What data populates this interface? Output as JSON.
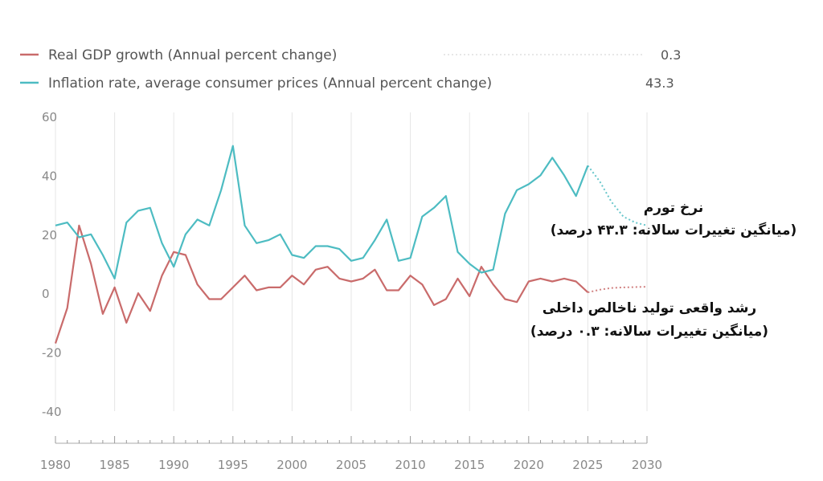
{
  "chart_data": {
    "type": "line",
    "title": "",
    "xlabel": "",
    "ylabel": "",
    "xlim": [
      1980,
      2030
    ],
    "ylim": [
      -40,
      60
    ],
    "x_ticks": [
      1980,
      1985,
      1990,
      1995,
      2000,
      2005,
      2010,
      2015,
      2020,
      2025,
      2030
    ],
    "y_ticks": [
      -40,
      -20,
      0,
      20,
      40,
      60
    ],
    "grid": "vertical",
    "legend_position": "top-left",
    "series": [
      {
        "name": "Real GDP growth (Annual percent change)",
        "legend_value": "0.3",
        "color": "#c96b6b",
        "x": [
          1980,
          1981,
          1982,
          1983,
          1984,
          1985,
          1986,
          1987,
          1988,
          1989,
          1990,
          1991,
          1992,
          1993,
          1994,
          1995,
          1996,
          1997,
          1998,
          1999,
          2000,
          2001,
          2002,
          2003,
          2004,
          2005,
          2006,
          2007,
          2008,
          2009,
          2010,
          2011,
          2012,
          2013,
          2014,
          2015,
          2016,
          2017,
          2018,
          2019,
          2020,
          2021,
          2022,
          2023,
          2024,
          2025
        ],
        "values": [
          -17,
          -5,
          23,
          10,
          -7,
          2,
          -10,
          0,
          -6,
          6,
          14,
          13,
          3,
          -2,
          -2,
          2,
          6,
          1,
          2,
          2,
          6,
          3,
          8,
          9,
          5,
          4,
          5,
          8,
          1,
          1,
          6,
          3,
          -4,
          -2,
          5,
          -1,
          9,
          3,
          -2,
          -3,
          4,
          5,
          4,
          5,
          4,
          0.3
        ],
        "projection": {
          "x": [
            2025,
            2026,
            2027,
            2028,
            2029,
            2030
          ],
          "values": [
            0.3,
            1.2,
            1.8,
            2.0,
            2.1,
            2.2
          ]
        }
      },
      {
        "name": "Inflation rate, average consumer prices (Annual percent change)",
        "legend_value": "43.3",
        "color": "#4dbcc2",
        "x": [
          1980,
          1981,
          1982,
          1983,
          1984,
          1985,
          1986,
          1987,
          1988,
          1989,
          1990,
          1991,
          1992,
          1993,
          1994,
          1995,
          1996,
          1997,
          1998,
          1999,
          2000,
          2001,
          2002,
          2003,
          2004,
          2005,
          2006,
          2007,
          2008,
          2009,
          2010,
          2011,
          2012,
          2013,
          2014,
          2015,
          2016,
          2017,
          2018,
          2019,
          2020,
          2021,
          2022,
          2023,
          2024,
          2025
        ],
        "values": [
          23,
          24,
          19,
          20,
          13,
          5,
          24,
          28,
          29,
          17,
          9,
          20,
          25,
          23,
          35,
          50,
          23,
          17,
          18,
          20,
          13,
          12,
          16,
          16,
          15,
          11,
          12,
          18,
          25,
          11,
          12,
          26,
          29,
          33,
          14,
          10,
          7,
          8,
          27,
          35,
          37,
          40,
          46,
          40,
          33,
          43.3
        ],
        "projection": {
          "x": [
            2025,
            2026,
            2027,
            2028,
            2029,
            2030
          ],
          "values": [
            43.3,
            38,
            31,
            26,
            24,
            23
          ]
        }
      }
    ],
    "annotations": [
      {
        "lines": [
          "نرخ تورم",
          "(میانگین تغییرات سالانه: ۴۳.۳ درصد)"
        ]
      },
      {
        "lines": [
          "رشد واقعی تولید ناخالص داخلی",
          "(میانگین تغییرات سالانه: ۰.۳ درصد)"
        ]
      }
    ]
  }
}
